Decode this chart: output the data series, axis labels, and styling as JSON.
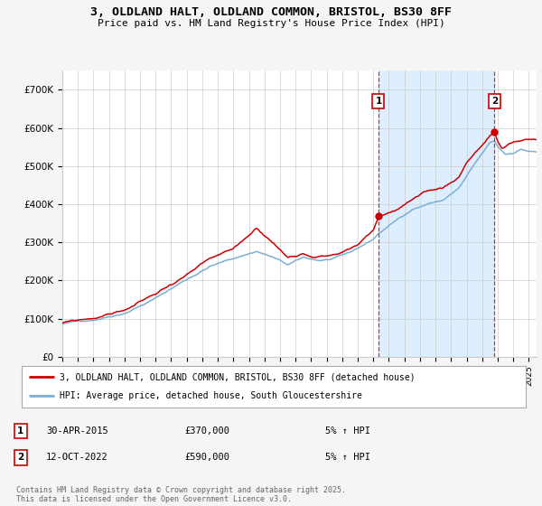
{
  "title": "3, OLDLAND HALT, OLDLAND COMMON, BRISTOL, BS30 8FF",
  "subtitle": "Price paid vs. HM Land Registry's House Price Index (HPI)",
  "legend_line1": "3, OLDLAND HALT, OLDLAND COMMON, BRISTOL, BS30 8FF (detached house)",
  "legend_line2": "HPI: Average price, detached house, South Gloucestershire",
  "footer": "Contains HM Land Registry data © Crown copyright and database right 2025.\nThis data is licensed under the Open Government Licence v3.0.",
  "annotation1": {
    "label": "1",
    "date": "30-APR-2015",
    "price": "£370,000",
    "hpi": "5% ↑ HPI"
  },
  "annotation2": {
    "label": "2",
    "date": "12-OCT-2022",
    "price": "£590,000",
    "hpi": "5% ↑ HPI"
  },
  "sale1_x": 2015.33,
  "sale1_y": 370000,
  "sale2_x": 2022.79,
  "sale2_y": 590000,
  "hpi_color": "#7bafd4",
  "price_color": "#cc0000",
  "shade_color": "#ddeeff",
  "background_color": "#f5f5f5",
  "plot_bg_color": "#ffffff",
  "ylim": [
    0,
    750000
  ],
  "xlim_start": 1995,
  "xlim_end": 2025.5,
  "yticks": [
    0,
    100000,
    200000,
    300000,
    400000,
    500000,
    600000,
    700000
  ],
  "ytick_labels": [
    "£0",
    "£100K",
    "£200K",
    "£300K",
    "£400K",
    "£500K",
    "£600K",
    "£700K"
  ]
}
